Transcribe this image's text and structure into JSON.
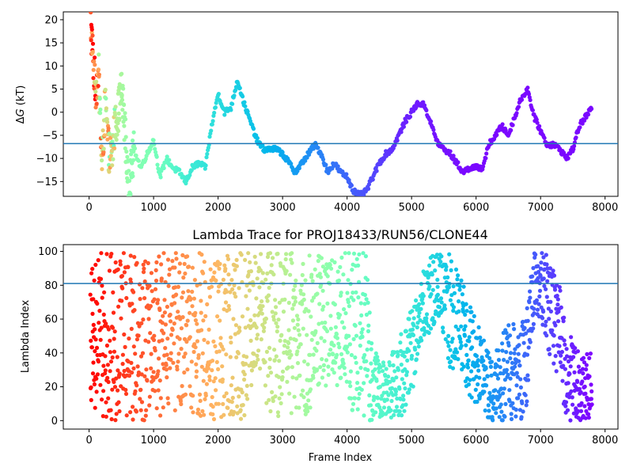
{
  "chart_data": [
    {
      "type": "scatter",
      "title": "",
      "xlabel": "",
      "ylabel_prefix": "Δ",
      "ylabel_var": "G",
      "ylabel_suffix": " (kT)",
      "xlim": [
        -400,
        8200
      ],
      "ylim": [
        -18.2,
        21.7
      ],
      "xticks": [
        0,
        1000,
        2000,
        3000,
        4000,
        5000,
        6000,
        7000,
        8000
      ],
      "yticks": [
        -15,
        -10,
        -5,
        0,
        5,
        10,
        15,
        20
      ],
      "xtick_labels": [
        "0",
        "1000",
        "2000",
        "3000",
        "4000",
        "5000",
        "6000",
        "7000",
        "8000"
      ],
      "ytick_labels": [
        "−15",
        "−10",
        "−5",
        "0",
        "5",
        "10",
        "15",
        "20"
      ],
      "hline": -6.8,
      "hline_color": "#1f77b4",
      "colormap": "rainbow",
      "color_by": "lambda_index",
      "grid": false,
      "series": [
        {
          "x": [
            20,
            60,
            100,
            150,
            200,
            250,
            300,
            350,
            400,
            450,
            500,
            550,
            600,
            650,
            700,
            800,
            900,
            1000,
            1100,
            1200,
            1300,
            1400,
            1500,
            1600,
            1700,
            1800,
            1900,
            2000,
            2100,
            2200,
            2300,
            2400,
            2500,
            2600,
            2700,
            2800,
            2900,
            3000,
            3100,
            3200,
            3300,
            3400,
            3500,
            3600,
            3700,
            3800,
            3900,
            4000,
            4100,
            4200,
            4300,
            4400,
            4500,
            4600,
            4700,
            4800,
            4900,
            5000,
            5100,
            5200,
            5300,
            5400,
            5500,
            5600,
            5700,
            5800,
            5900,
            6000,
            6100,
            6200,
            6300,
            6400,
            6500,
            6600,
            6700,
            6800,
            6900,
            7000,
            7100,
            7200,
            7300,
            7400,
            7500,
            7600,
            7700,
            7800
          ],
          "y": [
            20.0,
            12.0,
            5.0,
            8.0,
            -12.0,
            2.0,
            -8.0,
            -10.0,
            -3.0,
            0.0,
            5.0,
            -2.0,
            -15.0,
            -13.0,
            -8.0,
            -12.0,
            -9.0,
            -6.0,
            -14.0,
            -10.0,
            -12.0,
            -13.0,
            -15.0,
            -12.0,
            -11.0,
            -12.0,
            -3.0,
            4.0,
            0.0,
            1.0,
            7.0,
            2.0,
            -2.0,
            -6.0,
            -8.0,
            -8.0,
            -8.0,
            -9.0,
            -11.0,
            -13.0,
            -11.0,
            -9.0,
            -7.0,
            -9.0,
            -13.0,
            -11.0,
            -13.0,
            -14.0,
            -17.0,
            -18.0,
            -17.0,
            -14.0,
            -11.0,
            -9.0,
            -8.0,
            -5.0,
            -2.0,
            0.0,
            2.0,
            1.5,
            -2.5,
            -6.5,
            -8.0,
            -9.0,
            -11.0,
            -13.0,
            -12.0,
            -12.0,
            -12.0,
            -7.0,
            -5.0,
            -3.0,
            -5.0,
            -1.0,
            3.0,
            5.0,
            -1.0,
            -4.0,
            -7.0,
            -7.0,
            -8.0,
            -10.0,
            -8.0,
            -3.0,
            -1.0,
            1.0
          ],
          "lambda": [
            98,
            90,
            80,
            75,
            70,
            68,
            66,
            64,
            62,
            60,
            58,
            56,
            54,
            52,
            52,
            50,
            50,
            49,
            46,
            45,
            42,
            40,
            38,
            37,
            36,
            35,
            34,
            33,
            32,
            31,
            30,
            29,
            28,
            27,
            26,
            25,
            24,
            23,
            22,
            21,
            20,
            19,
            18,
            17,
            16,
            15,
            14,
            13,
            12,
            11,
            10,
            9,
            8,
            7,
            6,
            5,
            4,
            4,
            3,
            3,
            3,
            2,
            2,
            2,
            2,
            1,
            1,
            1,
            1,
            1,
            1,
            1,
            1,
            1,
            1,
            1,
            1,
            1,
            1,
            1,
            1,
            1,
            1,
            1,
            1,
            1
          ]
        }
      ]
    },
    {
      "type": "scatter",
      "title": "Lambda Trace for PROJ18433/RUN56/CLONE44",
      "xlabel": "Frame Index",
      "ylabel": "Lambda Index",
      "xlim": [
        -400,
        8200
      ],
      "ylim": [
        -5,
        104
      ],
      "xticks": [
        0,
        1000,
        2000,
        3000,
        4000,
        5000,
        6000,
        7000,
        8000
      ],
      "yticks": [
        0,
        20,
        40,
        60,
        80,
        100
      ],
      "xtick_labels": [
        "0",
        "1000",
        "2000",
        "3000",
        "4000",
        "5000",
        "6000",
        "7000",
        "8000"
      ],
      "ytick_labels": [
        "0",
        "20",
        "40",
        "60",
        "80",
        "100"
      ],
      "hline": 81,
      "hline_color": "#1f77b4",
      "colormap": "rainbow",
      "color_by": "frame_index",
      "grid": false,
      "series": [
        {
          "x": [
            20,
            100,
            200,
            300,
            400,
            500,
            600,
            700,
            800,
            900,
            1000,
            1100,
            1200,
            1300,
            1400,
            1500,
            1600,
            1700,
            1800,
            1900,
            2000,
            2100,
            2200,
            2300,
            2400,
            2500,
            2600,
            2700,
            2800,
            2900,
            3000,
            3100,
            3200,
            3300,
            3400,
            3500,
            3600,
            3700,
            3800,
            3900,
            4000,
            4100,
            4200,
            4300,
            4400,
            4500,
            4600,
            4700,
            4800,
            4900,
            5000,
            5100,
            5200,
            5300,
            5400,
            5500,
            5600,
            5700,
            5800,
            5900,
            6000,
            6100,
            6200,
            6300,
            6400,
            6500,
            6600,
            6700,
            6800,
            6900,
            7000,
            7100,
            7200,
            7300,
            7400,
            7500,
            7600,
            7700,
            7800
          ],
          "y": [
            50,
            50,
            50,
            50,
            50,
            50,
            50,
            50,
            50,
            50,
            50,
            50,
            50,
            50,
            50,
            50,
            50,
            50,
            50,
            50,
            50,
            50,
            50,
            50,
            50,
            60,
            60,
            60,
            50,
            50,
            50,
            50,
            50,
            50,
            50,
            60,
            60,
            60,
            60,
            60,
            60,
            50,
            50,
            50,
            20,
            20,
            20,
            20,
            25,
            30,
            40,
            60,
            70,
            75,
            80,
            75,
            65,
            60,
            55,
            40,
            35,
            30,
            20,
            20,
            25,
            30,
            30,
            30,
            40,
            80,
            80,
            70,
            60,
            50,
            25,
            25,
            20,
            20,
            20
          ],
          "spread": [
            100,
            100,
            100,
            100,
            100,
            100,
            100,
            100,
            100,
            100,
            100,
            100,
            100,
            100,
            100,
            100,
            100,
            100,
            100,
            100,
            100,
            100,
            100,
            100,
            100,
            80,
            80,
            80,
            100,
            100,
            100,
            100,
            100,
            100,
            100,
            80,
            80,
            80,
            80,
            80,
            80,
            100,
            100,
            100,
            40,
            40,
            40,
            40,
            50,
            60,
            60,
            40,
            40,
            45,
            40,
            50,
            70,
            60,
            50,
            60,
            50,
            40,
            40,
            40,
            50,
            60,
            60,
            60,
            60,
            40,
            40,
            60,
            60,
            60,
            50,
            50,
            40,
            40,
            40
          ]
        }
      ]
    }
  ]
}
